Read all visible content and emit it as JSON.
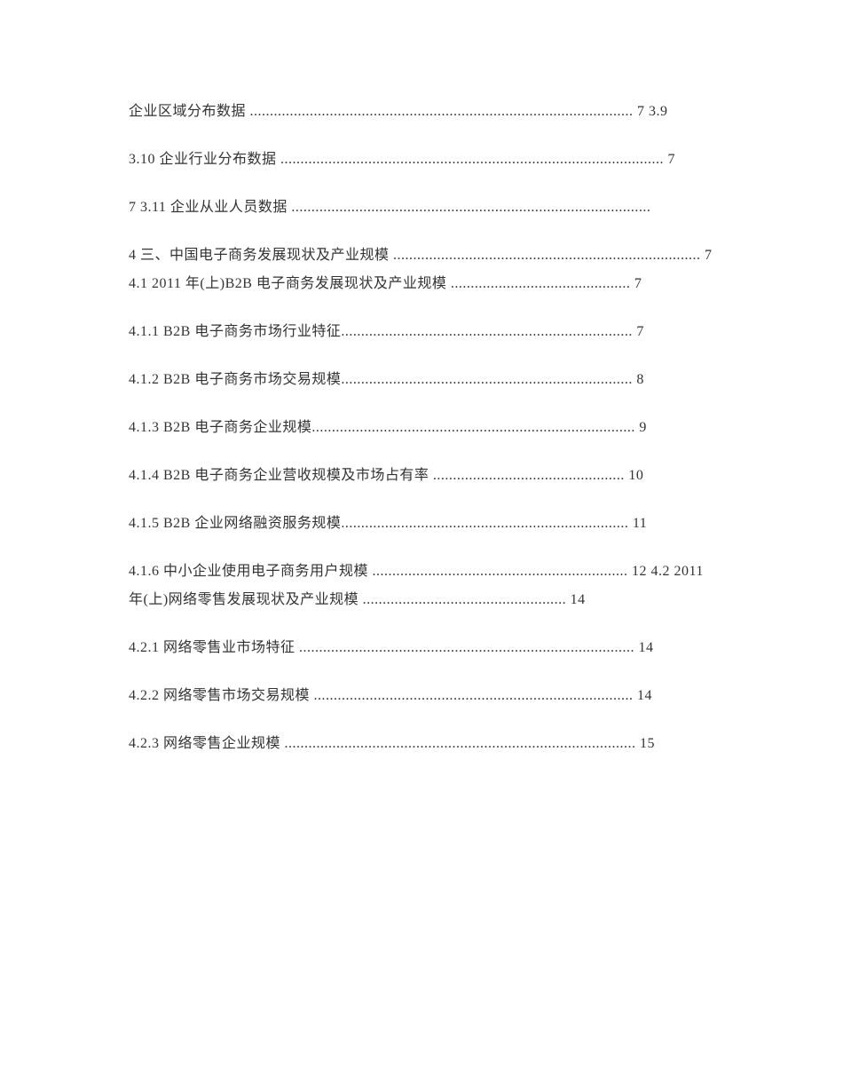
{
  "entries": [
    "企业区域分布数据 ................................................................................................ 7 3.9",
    "3.10 企业行业分布数据 ................................................................................................ 7",
    "7 3.11 企业从业人员数据 ..........................................................................................",
    "4 三、中国电子商务发展现状及产业规模 ............................................................................. 7 4.1 2011 年(上)B2B 电子商务发展现状及产业规模 ............................................. 7",
    "4.1.1 B2B 电子商务市场行业特征......................................................................... 7",
    "4.1.2 B2B 电子商务市场交易规模......................................................................... 8",
    "4.1.3 B2B 电子商务企业规模................................................................................. 9",
    "4.1.4 B2B 电子商务企业营收规模及市场占有率 ................................................ 10",
    "4.1.5 B2B 企业网络融资服务规模........................................................................ 11",
    "4.1.6 中小企业使用电子商务用户规模 ................................................................ 12 4.2 2011 年(上)网络零售发展现状及产业规模 ................................................... 14",
    "4.2.1 网络零售业市场特征 .................................................................................... 14",
    "4.2.2 网络零售市场交易规模 ................................................................................ 14",
    "4.2.3 网络零售企业规模 ........................................................................................ 15"
  ]
}
